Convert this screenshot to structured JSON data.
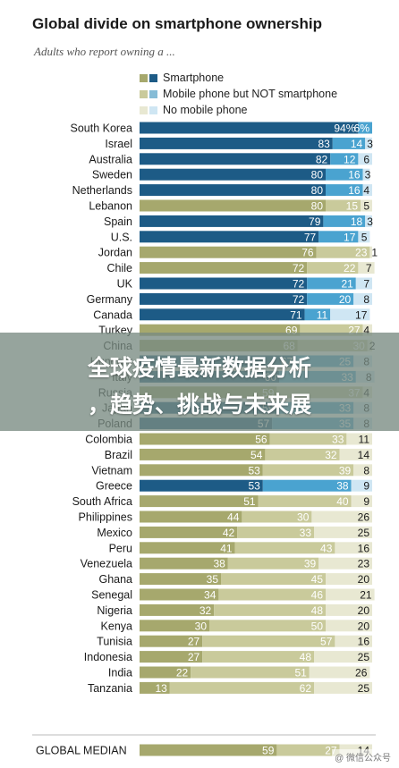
{
  "title": "Global divide on smartphone ownership",
  "subtitle": "Adults who report owning a ...",
  "overlay": {
    "line1": "全球疫情最新数据分析",
    "line2": "，趋势、挑战与未来展"
  },
  "watermark": "@ 微信公众号",
  "colors": {
    "advanced_smartphone": "#1d5b86",
    "advanced_mobile": "#4aa3d0",
    "advanced_none": "#cfe6f3",
    "emerging_smartphone": "#a6a86d",
    "emerging_mobile": "#c9ca9b",
    "emerging_none": "#e8e8d2"
  },
  "chart_data": {
    "type": "bar",
    "stacked": true,
    "orientation": "horizontal",
    "title": "Global divide on smartphone ownership",
    "subtitle": "Adults who report owning a ...",
    "legend": [
      "Smartphone",
      "Mobile phone but NOT smartphone",
      "No mobile phone"
    ],
    "legend_placement": "top",
    "grid": false,
    "xlim": [
      0,
      100
    ],
    "categories": [
      "South Korea",
      "Israel",
      "Australia",
      "Sweden",
      "Netherlands",
      "Lebanon",
      "Spain",
      "U.S.",
      "Jordan",
      "Chile",
      "UK",
      "Germany",
      "Canada",
      "Turkey",
      "China",
      "Hungary",
      "Italy",
      "Russia",
      "Japan",
      "Poland",
      "Colombia",
      "Brazil",
      "Vietnam",
      "Greece",
      "South Africa",
      "Philippines",
      "Mexico",
      "Peru",
      "Venezuela",
      "Ghana",
      "Senegal",
      "Nigeria",
      "Kenya",
      "Tunisia",
      "Indonesia",
      "India",
      "Tanzania",
      "GLOBAL MEDIAN"
    ],
    "group": [
      "adv",
      "adv",
      "adv",
      "adv",
      "adv",
      "emg",
      "adv",
      "adv",
      "emg",
      "emg",
      "adv",
      "adv",
      "adv",
      "emg",
      "emg",
      "adv",
      "adv",
      "emg",
      "adv",
      "adv",
      "emg",
      "emg",
      "emg",
      "adv",
      "emg",
      "emg",
      "emg",
      "emg",
      "emg",
      "emg",
      "emg",
      "emg",
      "emg",
      "emg",
      "emg",
      "emg",
      "emg",
      "emg"
    ],
    "series": [
      {
        "name": "Smartphone",
        "values": [
          94,
          83,
          82,
          80,
          80,
          80,
          79,
          77,
          76,
          72,
          72,
          72,
          71,
          69,
          68,
          67,
          60,
          59,
          59,
          57,
          56,
          54,
          53,
          53,
          51,
          44,
          42,
          41,
          38,
          35,
          34,
          32,
          30,
          27,
          27,
          22,
          13,
          59
        ]
      },
      {
        "name": "Mobile phone but NOT smartphone",
        "values": [
          6,
          14,
          12,
          16,
          16,
          15,
          18,
          17,
          23,
          22,
          21,
          20,
          11,
          27,
          30,
          25,
          33,
          37,
          33,
          35,
          33,
          32,
          39,
          38,
          40,
          30,
          33,
          43,
          39,
          45,
          46,
          48,
          50,
          57,
          48,
          51,
          62,
          27
        ]
      },
      {
        "name": "No mobile phone",
        "values": [
          0,
          3,
          6,
          3,
          4,
          5,
          3,
          5,
          1,
          7,
          7,
          8,
          17,
          4,
          2,
          8,
          8,
          4,
          8,
          8,
          11,
          14,
          8,
          9,
          9,
          26,
          25,
          16,
          23,
          20,
          21,
          20,
          20,
          16,
          25,
          26,
          25,
          14
        ]
      }
    ],
    "value_labels_smartphone": [
      "94%",
      "83",
      "82",
      "80",
      "80",
      "80",
      "79",
      "77",
      "76",
      "72",
      "72",
      "72",
      "71",
      "69",
      "68",
      "67",
      "60",
      "59",
      "59",
      "57",
      "56",
      "54",
      "53",
      "53",
      "51",
      "44",
      "42",
      "41",
      "38",
      "35",
      "34",
      "32",
      "30",
      "27",
      "27",
      "22",
      "13",
      "59"
    ],
    "value_labels_mobile": [
      "6%",
      "14",
      "12",
      "16",
      "16",
      "15",
      "18",
      "17",
      "23",
      "22",
      "21",
      "20",
      "11",
      "27",
      "30",
      "25",
      "33",
      "37",
      "33",
      "35",
      "33",
      "32",
      "39",
      "38",
      "40",
      "30",
      "33",
      "43",
      "39",
      "45",
      "46",
      "48",
      "50",
      "57",
      "48",
      "51",
      "62",
      "27"
    ],
    "value_labels_none": [
      "",
      "3",
      "6",
      "3",
      "4",
      "5",
      "3",
      "5",
      "1",
      "7",
      "7",
      "8",
      "17",
      "4",
      "2",
      "8",
      "8",
      "4",
      "8",
      "8",
      "11",
      "14",
      "8",
      "9",
      "9",
      "26",
      "25",
      "16",
      "23",
      "20",
      "21",
      "20",
      "20",
      "16",
      "25",
      "26",
      "25",
      "14"
    ]
  }
}
